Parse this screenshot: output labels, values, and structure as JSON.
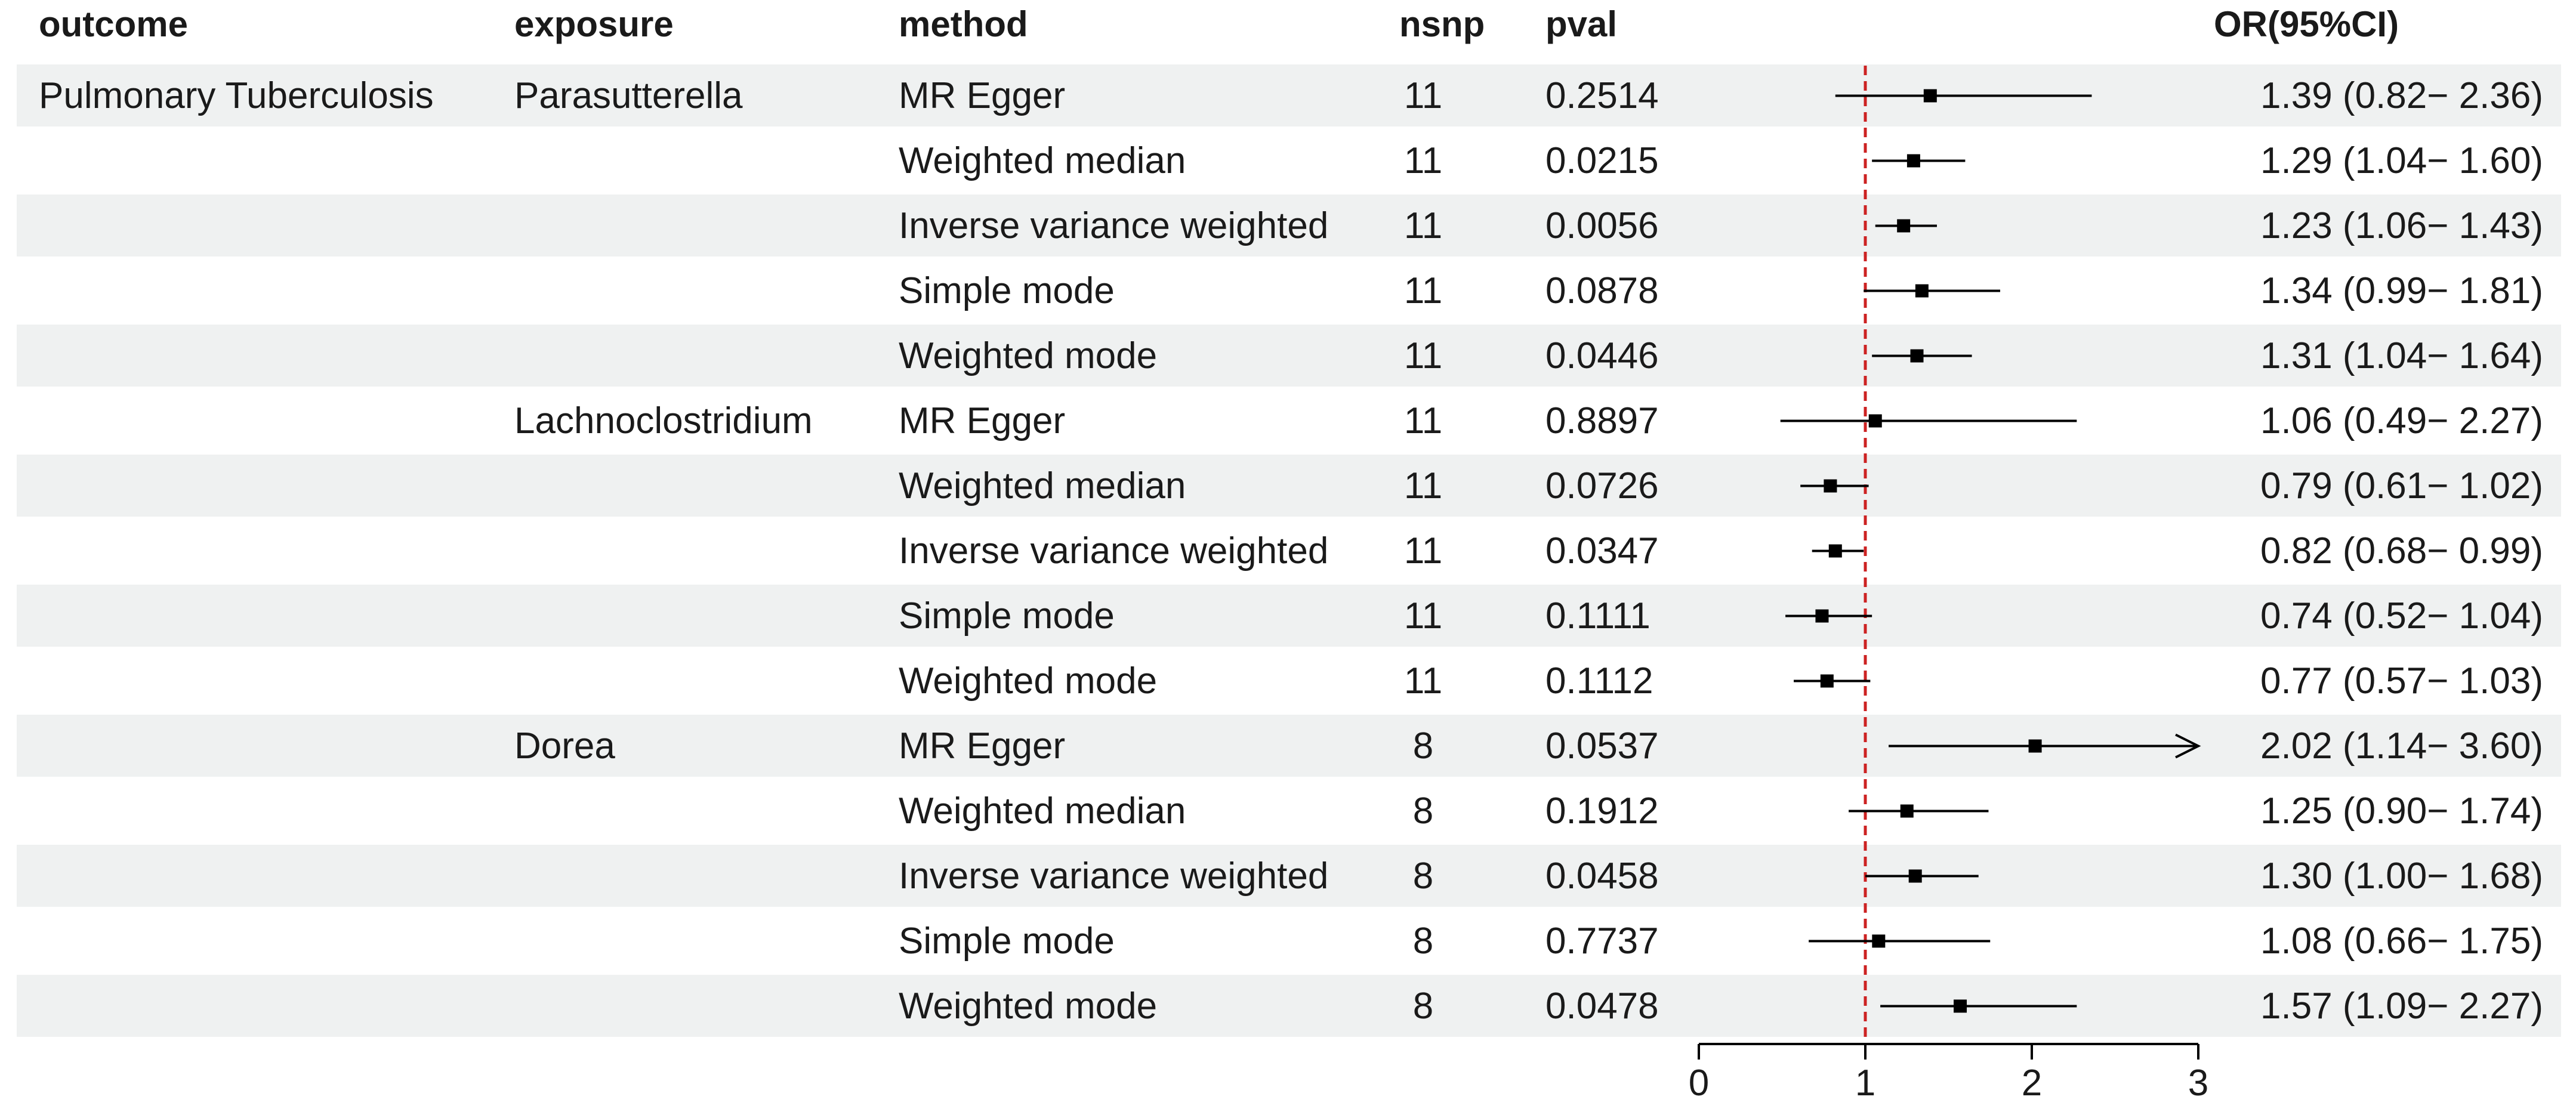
{
  "headers": {
    "outcome": "outcome",
    "exposure": "exposure",
    "method": "method",
    "nsnp": "nsnp",
    "pval": "pval",
    "or_ci": "OR(95%CI)"
  },
  "rows": [
    {
      "outcome": "Pulmonary Tuberculosis",
      "exposure": "Parasutterella",
      "method": "MR Egger",
      "nsnp": "11",
      "pval": "0.2514",
      "or_text": "1.39 (0.82−  2.36)"
    },
    {
      "outcome": "",
      "exposure": "",
      "method": "Weighted median",
      "nsnp": "11",
      "pval": "0.0215",
      "or_text": "1.29 (1.04−  1.60)"
    },
    {
      "outcome": "",
      "exposure": "",
      "method": "Inverse variance weighted",
      "nsnp": "11",
      "pval": "0.0056",
      "or_text": "1.23 (1.06−  1.43)"
    },
    {
      "outcome": "",
      "exposure": "",
      "method": "Simple mode",
      "nsnp": "11",
      "pval": "0.0878",
      "or_text": "1.34 (0.99−  1.81)"
    },
    {
      "outcome": "",
      "exposure": "",
      "method": "Weighted mode",
      "nsnp": "11",
      "pval": "0.0446",
      "or_text": "1.31 (1.04−  1.64)"
    },
    {
      "outcome": "",
      "exposure": "Lachnoclostridium",
      "method": "MR Egger",
      "nsnp": "11",
      "pval": "0.8897",
      "or_text": "1.06 (0.49−  2.27)"
    },
    {
      "outcome": "",
      "exposure": "",
      "method": "Weighted median",
      "nsnp": "11",
      "pval": "0.0726",
      "or_text": "0.79 (0.61−  1.02)"
    },
    {
      "outcome": "",
      "exposure": "",
      "method": "Inverse variance weighted",
      "nsnp": "11",
      "pval": "0.0347",
      "or_text": "0.82 (0.68−  0.99)"
    },
    {
      "outcome": "",
      "exposure": "",
      "method": "Simple mode",
      "nsnp": "11",
      "pval": "0.1111",
      "or_text": "0.74 (0.52−  1.04)"
    },
    {
      "outcome": "",
      "exposure": "",
      "method": "Weighted mode",
      "nsnp": "11",
      "pval": "0.1112",
      "or_text": "0.77 (0.57−  1.03)"
    },
    {
      "outcome": "",
      "exposure": "Dorea",
      "method": "MR Egger",
      "nsnp": "8",
      "pval": "0.0537",
      "or_text": "2.02 (1.14−  3.60)"
    },
    {
      "outcome": "",
      "exposure": "",
      "method": "Weighted median",
      "nsnp": "8",
      "pval": "0.1912",
      "or_text": "1.25 (0.90−  1.74)"
    },
    {
      "outcome": "",
      "exposure": "",
      "method": "Inverse variance weighted",
      "nsnp": "8",
      "pval": "0.0458",
      "or_text": "1.30 (1.00−  1.68)"
    },
    {
      "outcome": "",
      "exposure": "",
      "method": "Simple mode",
      "nsnp": "8",
      "pval": "0.7737",
      "or_text": "1.08 (0.66−  1.75)"
    },
    {
      "outcome": "",
      "exposure": "",
      "method": "Weighted mode",
      "nsnp": "8",
      "pval": "0.0478",
      "or_text": "1.57 (1.09−  2.27)"
    }
  ],
  "chart_data": {
    "type": "forest",
    "title": "",
    "xlabel": "",
    "ylabel": "",
    "xlim": [
      0,
      3
    ],
    "xticks": [
      0,
      1,
      2,
      3
    ],
    "reference_line": 1,
    "colors": {
      "reference_line": "#cc2222",
      "band": "#eff1f1",
      "marks": "#000000"
    },
    "points": [
      {
        "or": 1.39,
        "lower": 0.82,
        "upper": 2.36
      },
      {
        "or": 1.29,
        "lower": 1.04,
        "upper": 1.6
      },
      {
        "or": 1.23,
        "lower": 1.06,
        "upper": 1.43
      },
      {
        "or": 1.34,
        "lower": 0.99,
        "upper": 1.81
      },
      {
        "or": 1.31,
        "lower": 1.04,
        "upper": 1.64
      },
      {
        "or": 1.06,
        "lower": 0.49,
        "upper": 2.27
      },
      {
        "or": 0.79,
        "lower": 0.61,
        "upper": 1.02
      },
      {
        "or": 0.82,
        "lower": 0.68,
        "upper": 0.99
      },
      {
        "or": 0.74,
        "lower": 0.52,
        "upper": 1.04
      },
      {
        "or": 0.77,
        "lower": 0.57,
        "upper": 1.03
      },
      {
        "or": 2.02,
        "lower": 1.14,
        "upper": 3.6
      },
      {
        "or": 1.25,
        "lower": 0.9,
        "upper": 1.74
      },
      {
        "or": 1.3,
        "lower": 1.0,
        "upper": 1.68
      },
      {
        "or": 1.08,
        "lower": 0.66,
        "upper": 1.75
      },
      {
        "or": 1.57,
        "lower": 1.09,
        "upper": 2.27
      }
    ]
  }
}
